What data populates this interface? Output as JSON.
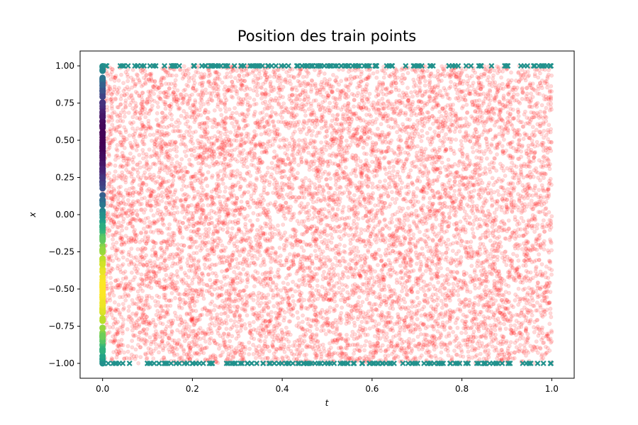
{
  "chart_data": {
    "type": "scatter",
    "title": "Position des train points",
    "xlabel": "t",
    "ylabel": "x",
    "xlim": [
      -0.05,
      1.05
    ],
    "ylim": [
      -1.1,
      1.1
    ],
    "x_ticks": [
      "0.0",
      "0.2",
      "0.4",
      "0.6",
      "0.8",
      "1.0"
    ],
    "x_tick_values": [
      0.0,
      0.2,
      0.4,
      0.6,
      0.8,
      1.0
    ],
    "y_ticks": [
      "1.00",
      "0.75",
      "0.50",
      "0.25",
      "0.00",
      "−0.25",
      "−0.50",
      "−0.75",
      "−1.00"
    ],
    "y_tick_values": [
      1.0,
      0.75,
      0.5,
      0.25,
      0.0,
      -0.25,
      -0.5,
      -0.75,
      -1.0
    ],
    "grid": false,
    "series": [
      {
        "role": "collocation",
        "marker": "circle",
        "color": "#ff0000",
        "alpha": 0.15,
        "count": 10000,
        "x_range": [
          0.0,
          1.0
        ],
        "y_range": [
          -1.0,
          1.0
        ],
        "distribution": "uniform random"
      },
      {
        "role": "boundary",
        "marker": "x",
        "color": "#21918c",
        "points_top": {
          "y": 1.0,
          "t_range": [
            0.0,
            1.0
          ],
          "count": 150
        },
        "points_bottom": {
          "y": -1.0,
          "t_range": [
            0.0,
            1.0
          ],
          "count": 150
        }
      },
      {
        "role": "initial",
        "marker": "circle",
        "colormap": "viridis",
        "x": 0.0,
        "y_range": [
          -1.0,
          1.0
        ],
        "count": 200,
        "value_function": "-sin(pi*x)"
      }
    ]
  }
}
